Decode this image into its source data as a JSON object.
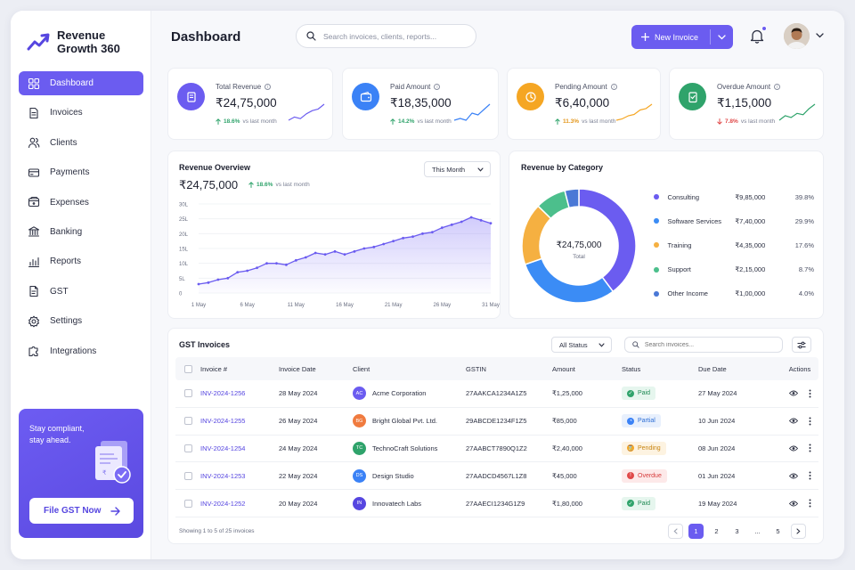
{
  "brand": {
    "line1": "Revenue",
    "line2": "Growth 360"
  },
  "sidebar": {
    "items": [
      {
        "label": "Dashboard",
        "icon": "grid-icon",
        "active": true
      },
      {
        "label": "Invoices",
        "icon": "document-icon"
      },
      {
        "label": "Clients",
        "icon": "users-icon"
      },
      {
        "label": "Payments",
        "icon": "card-icon"
      },
      {
        "label": "Expenses",
        "icon": "wallet-icon"
      },
      {
        "label": "Banking",
        "icon": "bank-icon"
      },
      {
        "label": "Reports",
        "icon": "bar-chart-icon"
      },
      {
        "label": "GST",
        "icon": "file-icon"
      },
      {
        "label": "Settings",
        "icon": "gear-icon"
      },
      {
        "label": "Integrations",
        "icon": "puzzle-icon"
      }
    ],
    "promo": {
      "line1": "Stay compliant,",
      "line2": "stay ahead.",
      "button": "File GST Now"
    }
  },
  "header": {
    "title": "Dashboard",
    "search_placeholder": "Search invoices, clients, reports...",
    "new_button": "New Invoice"
  },
  "kpis": [
    {
      "label": "Total Revenue",
      "value": "₹24,75,000",
      "change": "18.6%",
      "direction": "up",
      "note": "vs last month",
      "color": "#6b5cf0",
      "spark_color": "#6b5cf0",
      "spark": [
        2,
        3,
        2.5,
        4,
        5,
        5.5,
        7
      ]
    },
    {
      "label": "Paid Amount",
      "value": "₹18,35,000",
      "change": "14.2%",
      "direction": "up",
      "note": "vs last month",
      "color": "#3b82f6",
      "spark_color": "#3b82f6",
      "spark": [
        2,
        2.5,
        2,
        4,
        3.5,
        5,
        6.5
      ]
    },
    {
      "label": "Pending Amount",
      "value": "₹6,40,000",
      "change": "11.3%",
      "direction": "up",
      "note": "vs last month",
      "color": "#f5a623",
      "spark_color": "#f5a623",
      "spark": [
        1,
        1.5,
        2.5,
        3,
        4.5,
        5,
        6.5
      ]
    },
    {
      "label": "Overdue Amount",
      "value": "₹1,15,000",
      "change": "7.8%",
      "direction": "down",
      "note": "vs last month",
      "color": "#2fa36b",
      "spark_color": "#2fa36b",
      "spark": [
        2,
        3,
        2.6,
        3.5,
        3.2,
        4.5,
        5.5
      ]
    }
  ],
  "revenue_overview": {
    "title": "Revenue Overview",
    "period": "This Month",
    "value": "₹24,75,000",
    "change": "18.6%",
    "note": "vs last month"
  },
  "chart_data": {
    "type": "area",
    "x_tick_labels": [
      "1 May",
      "6 May",
      "11 May",
      "16 May",
      "21 May",
      "26 May",
      "31 May"
    ],
    "y_tick_labels": [
      "0",
      "5L",
      "10L",
      "15L",
      "20L",
      "25L",
      "30L"
    ],
    "ylim": [
      0,
      30
    ],
    "x": [
      1,
      2,
      3,
      4,
      5,
      6,
      7,
      8,
      9,
      10,
      11,
      12,
      13,
      14,
      15,
      16,
      17,
      18,
      19,
      20,
      21,
      22,
      23,
      24,
      25,
      26,
      27,
      28,
      29,
      30,
      31
    ],
    "values": [
      3,
      3.5,
      4.5,
      5,
      7,
      7.5,
      8.5,
      10,
      10,
      9.5,
      11,
      12,
      13.5,
      13,
      14,
      13,
      14,
      15,
      15.5,
      16.5,
      17.5,
      18.5,
      19,
      20,
      20.5,
      22,
      23,
      24,
      25.5,
      24.5,
      23.5
    ]
  },
  "category": {
    "title": "Revenue by Category",
    "center_value": "₹24,75,000",
    "center_label": "Total",
    "chart_data": {
      "type": "pie",
      "labels": [
        "Consulting",
        "Software Services",
        "Training",
        "Support",
        "Other Income"
      ],
      "values": [
        39.8,
        29.9,
        17.6,
        8.7,
        4.0
      ],
      "amounts": [
        "₹9,85,000",
        "₹7,40,000",
        "₹4,35,000",
        "₹2,15,000",
        "₹1,00,000"
      ],
      "percent_labels": [
        "39.8%",
        "29.9%",
        "17.6%",
        "8.7%",
        "4.0%"
      ],
      "colors": [
        "#6b5cf0",
        "#3b8cf5",
        "#f5b041",
        "#4cbf8c",
        "#4a78d6"
      ]
    }
  },
  "invoices": {
    "title": "GST Invoices",
    "status_filter": "All Status",
    "search_placeholder": "Search invoices...",
    "columns": [
      "Invoice #",
      "Invoice Date",
      "Client",
      "GSTIN",
      "Amount",
      "Status",
      "Due Date",
      "Actions"
    ],
    "rows": [
      {
        "id": "INV-2024-1256",
        "date": "28 May 2024",
        "initials": "AC",
        "client": "Acme Corporation",
        "gstin": "27AAKCA1234A1Z5",
        "amount": "₹1,25,000",
        "status": "Paid",
        "due": "27 May 2024",
        "av_color": "#6b5cf0"
      },
      {
        "id": "INV-2024-1255",
        "date": "26 May 2024",
        "initials": "BG",
        "client": "Bright Global Pvt. Ltd.",
        "gstin": "29ABCDE1234F1Z5",
        "amount": "₹85,000",
        "status": "Partial",
        "due": "10 Jun 2024",
        "av_color": "#f07b3f"
      },
      {
        "id": "INV-2024-1254",
        "date": "24 May 2024",
        "initials": "TC",
        "client": "TechnoCraft Solutions",
        "gstin": "27AABCT7890Q1Z2",
        "amount": "₹2,40,000",
        "status": "Pending",
        "due": "08 Jun 2024",
        "av_color": "#2fa36b"
      },
      {
        "id": "INV-2024-1253",
        "date": "22 May 2024",
        "initials": "DS",
        "client": "Design Studio",
        "gstin": "27AADCD4567L1Z8",
        "amount": "₹45,000",
        "status": "Overdue",
        "due": "01 Jun 2024",
        "av_color": "#3b82f6"
      },
      {
        "id": "INV-2024-1252",
        "date": "20 May 2024",
        "initials": "IN",
        "client": "Innovatech Labs",
        "gstin": "27AAECI1234G1Z9",
        "amount": "₹1,80,000",
        "status": "Paid",
        "due": "19 May 2024",
        "av_color": "#5646e0"
      }
    ],
    "status_styles": {
      "Paid": {
        "bg": "#e6f6ee",
        "fg": "#1f8a54",
        "icon_bg": "#2fa36b",
        "glyph": "✓"
      },
      "Partial": {
        "bg": "#e8f0fd",
        "fg": "#2e6fd6",
        "icon_bg": "#3b82f6",
        "glyph": "◔"
      },
      "Pending": {
        "bg": "#fdf3e1",
        "fg": "#c98512",
        "icon_bg": "#f5a623",
        "glyph": "⌛"
      },
      "Overdue": {
        "bg": "#fde9e9",
        "fg": "#d63b3b",
        "icon_bg": "#e04848",
        "glyph": "!"
      }
    },
    "footer": "Showing 1 to 5 of 25 invoices",
    "pages": [
      "1",
      "2",
      "3",
      "...",
      "5"
    ],
    "current_page": "1"
  }
}
